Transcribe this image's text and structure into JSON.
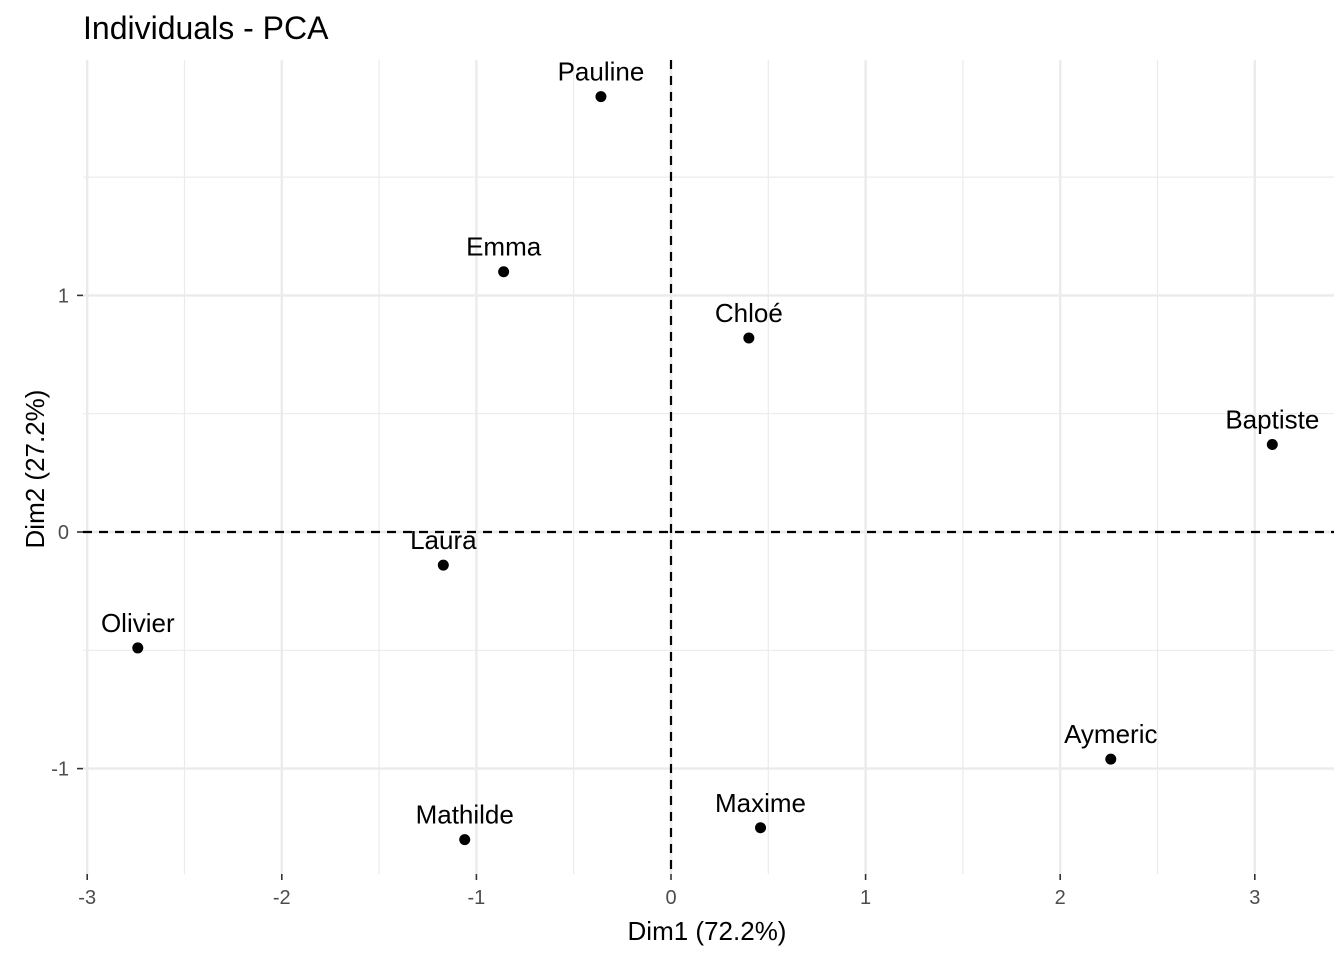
{
  "chart_data": {
    "type": "scatter",
    "title": "Individuals - PCA",
    "xlabel": "Dim1 (72.2%)",
    "ylabel": "Dim2 (27.2%)",
    "xlim": [
      -3.0,
      3.38
    ],
    "ylim": [
      -1.45,
      1.99
    ],
    "x_ticks": [
      -3,
      -2,
      -1,
      0,
      1,
      2,
      3
    ],
    "x_tick_labels": [
      "-3",
      "-2",
      "-1",
      "0",
      "1",
      "2",
      "3"
    ],
    "y_ticks": [
      -1,
      0,
      1
    ],
    "y_tick_labels": [
      "-1",
      "0",
      "1"
    ],
    "grid": true,
    "reference_lines": {
      "x": 0,
      "y": 0,
      "style": "dashed"
    },
    "colors": {
      "grid": "#ebebeb",
      "points": "#000000",
      "reference_line": "#000000",
      "tick_text": "#4d4d4d"
    },
    "points": [
      {
        "label": "Pauline",
        "x": -0.36,
        "y": 1.84
      },
      {
        "label": "Emma",
        "x": -0.86,
        "y": 1.1
      },
      {
        "label": "Chloé",
        "x": 0.4,
        "y": 0.82
      },
      {
        "label": "Baptiste",
        "x": 3.09,
        "y": 0.37
      },
      {
        "label": "Laura",
        "x": -1.17,
        "y": -0.14
      },
      {
        "label": "Olivier",
        "x": -2.74,
        "y": -0.49
      },
      {
        "label": "Aymeric",
        "x": 2.26,
        "y": -0.96
      },
      {
        "label": "Maxime",
        "x": 0.46,
        "y": -1.25
      },
      {
        "label": "Mathilde",
        "x": -1.06,
        "y": -1.3
      }
    ]
  }
}
